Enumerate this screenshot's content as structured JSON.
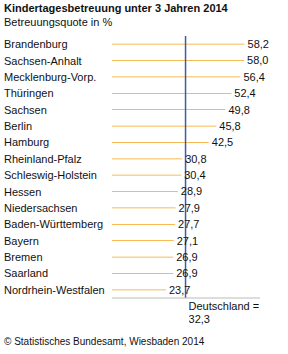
{
  "chart_data": {
    "type": "bar",
    "title": "Kindertagesbetreuung unter 3 Jahren 2014",
    "subtitle": "Betreuungsquote in %",
    "source": "© Statistisches Bundesamt, Wiesbaden 2014",
    "orientation": "horizontal",
    "categories": [
      "Brandenburg",
      "Sachsen-Anhalt",
      "Mecklenburg-Vorp.",
      "Thüringen",
      "Sachsen",
      "Berlin",
      "Hamburg",
      "Rheinland-Pfalz",
      "Schleswig-Holstein",
      "Hessen",
      "Niedersachsen",
      "Baden-Württemberg",
      "Bayern",
      "Bremen",
      "Saarland",
      "Nordrhein-Westfalen"
    ],
    "values": [
      58.2,
      58.0,
      56.4,
      52.4,
      49.8,
      45.8,
      42.5,
      30.8,
      30.4,
      28.9,
      27.9,
      27.7,
      27.1,
      26.9,
      26.9,
      23.7
    ],
    "value_labels": [
      "58,2",
      "58,0",
      "56,4",
      "52,4",
      "49,8",
      "45,8",
      "42,5",
      "30,8",
      "30,4",
      "28,9",
      "27,9",
      "27,7",
      "27,1",
      "26,9",
      "26,9",
      "23,7"
    ],
    "color": "#f5a51e",
    "xlim": [
      0,
      65
    ],
    "grid": false,
    "data_labels": true,
    "tick_labels": "y",
    "reference_line": {
      "value": 32.3,
      "label": "Deutschland = 32,3",
      "color": "#3a5da8"
    }
  }
}
